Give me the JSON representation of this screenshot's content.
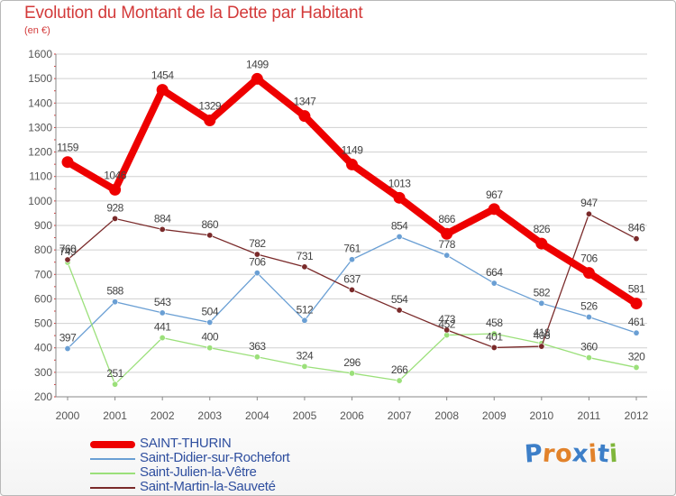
{
  "title": "Evolution du Montant de la Dette par Habitant",
  "subtitle": "(en €)",
  "colors": {
    "title": "#d33a3a",
    "axis": "#555555",
    "grid": "#d0d0d0",
    "legend_text": "#2f4f9f"
  },
  "logo": {
    "letters": [
      "P",
      "r",
      "o",
      "x",
      "i",
      "t",
      "i"
    ],
    "colors": [
      "#3d7fc8",
      "#e2822a",
      "#e2822a",
      "#3d7fc8",
      "#e2822a",
      "#3d7fc8",
      "#7fb63b"
    ]
  },
  "chart_data": {
    "type": "line",
    "title": "Evolution du Montant de la Dette par Habitant",
    "subtitle": "(en €)",
    "xlabel": "",
    "ylabel": "",
    "x": [
      "2000",
      "2001",
      "2002",
      "2003",
      "2004",
      "2005",
      "2006",
      "2007",
      "2008",
      "2009",
      "2010",
      "2011",
      "2012"
    ],
    "ylim": [
      200,
      1600
    ],
    "yticks": [
      "200",
      "300",
      "400",
      "500",
      "600",
      "700",
      "800",
      "900",
      "1000",
      "1100",
      "1200",
      "1300",
      "1400",
      "1500",
      "1600"
    ],
    "grid": "horizontal",
    "legend_position": "bottom-left",
    "series": [
      {
        "name": "SAINT-THURIN",
        "color": "#ee0000",
        "bold": true,
        "values": [
          1159,
          1046,
          1454,
          1329,
          1499,
          1347,
          1149,
          1013,
          866,
          967,
          826,
          706,
          581
        ],
        "labels": [
          "1159",
          "1046",
          "1454",
          "1329",
          "1499",
          "1347",
          "1149",
          "1013",
          "866",
          "967",
          "826",
          "706",
          "581"
        ]
      },
      {
        "name": "Saint-Didier-sur-Rochefort",
        "color": "#6a9fd4",
        "bold": false,
        "values": [
          397,
          588,
          543,
          504,
          706,
          512,
          761,
          854,
          778,
          664,
          582,
          526,
          461
        ],
        "labels": [
          "397",
          "588",
          "543",
          "504",
          "706",
          "512",
          "761",
          "854",
          "778",
          "664",
          "582",
          "526",
          "461"
        ]
      },
      {
        "name": "Saint-Julien-la-Vêtre",
        "color": "#9be07a",
        "bold": false,
        "values": [
          749,
          251,
          441,
          400,
          363,
          324,
          296,
          266,
          452,
          458,
          418,
          360,
          320
        ],
        "labels": [
          "749",
          "251",
          "441",
          "400",
          "363",
          "324",
          "296",
          "266",
          "452",
          "458",
          "418",
          "360",
          "320"
        ]
      },
      {
        "name": "Saint-Martin-la-Sauveté",
        "color": "#7a2a2a",
        "bold": false,
        "values": [
          760,
          928,
          884,
          860,
          782,
          731,
          637,
          554,
          473,
          401,
          406,
          947,
          846
        ],
        "labels": [
          "760",
          "928",
          "884",
          "860",
          "782",
          "731",
          "637",
          "554",
          "473",
          "401",
          "406",
          "947",
          "846"
        ]
      }
    ]
  }
}
